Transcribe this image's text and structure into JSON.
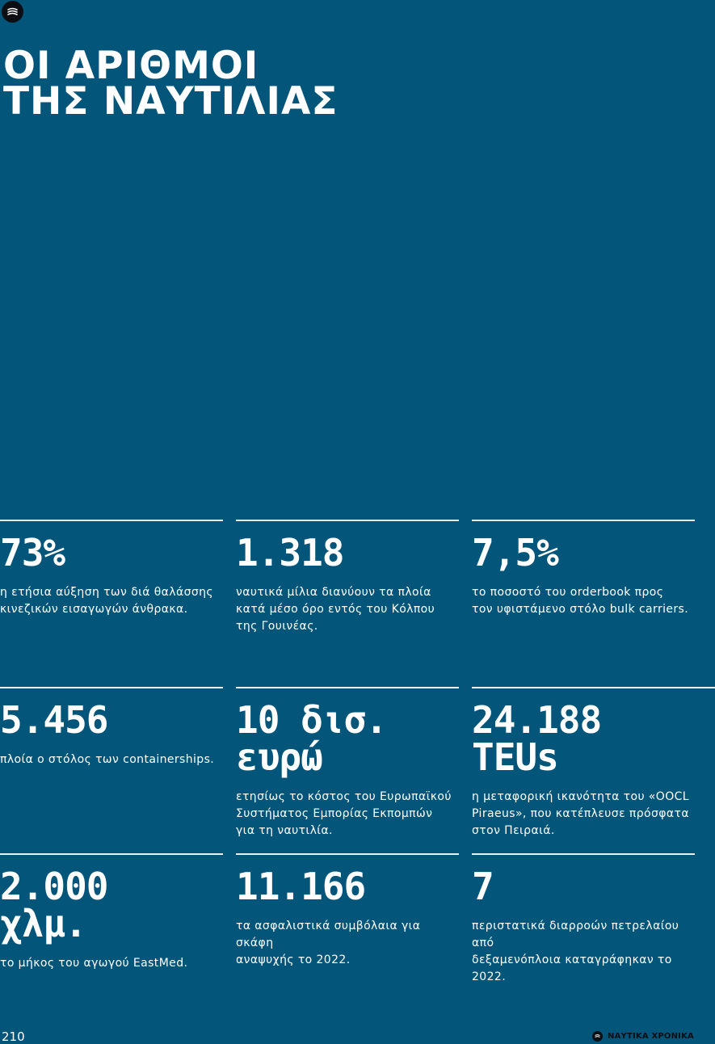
{
  "title": {
    "line1": "ΟΙ ΑΡΙΘΜΟΙ",
    "line2": "ΤΗΣ ΝΑΥΤΙΛΙΑΣ"
  },
  "stats": [
    {
      "value_lines": [
        "73%"
      ],
      "desc_lines": [
        "η ετήσια αύξηση των διά θαλάσσης",
        "κινεζικών εισαγωγών άνθρακα."
      ]
    },
    {
      "value_lines": [
        "1.318"
      ],
      "desc_lines": [
        "ναυτικά μίλια διανύουν τα πλοία",
        "κατά μέσο όρο εντός του Κόλπου",
        "της Γουινέας."
      ]
    },
    {
      "value_lines": [
        "7,5%"
      ],
      "desc_lines": [
        "το ποσοστό του orderbook προς",
        "τον υφιστάμενο στόλο bulk carriers."
      ]
    },
    {
      "value_lines": [
        "5.456"
      ],
      "desc_lines": [
        "πλοία ο στόλος των containerships."
      ]
    },
    {
      "value_lines": [
        "10 δισ.",
        "ευρώ"
      ],
      "desc_lines": [
        "ετησίως το κόστος του Ευρωπαϊκού",
        "Συστήματος Εμπορίας Εκπομπών",
        "για τη ναυτιλία."
      ]
    },
    {
      "value_lines": [
        "24.188",
        "TEUs"
      ],
      "desc_lines": [
        "η μεταφορική ικανότητα του «OOCL",
        "Piraeus», που κατέπλευσε πρόσφατα",
        "στον Πειραιά."
      ]
    },
    {
      "value_lines": [
        "2.000",
        "χλμ."
      ],
      "desc_lines": [
        "το μήκος του αγωγού EastMed."
      ]
    },
    {
      "value_lines": [
        "11.166"
      ],
      "desc_lines": [
        "τα ασφαλιστικά συμβόλαια για σκάφη",
        "αναψυχής το 2022."
      ]
    },
    {
      "value_lines": [
        "7"
      ],
      "desc_lines": [
        "περιστατικά διαρροών πετρελαίου από",
        "δεξαμενόπλοια καταγράφηκαν το 2022."
      ]
    }
  ],
  "footer": {
    "page_number": "210",
    "brand": "ΝΑΥΤΙΚΑ ΧΡΟΝΙΚΑ"
  },
  "icons": {
    "logo": "wave-logo-icon"
  },
  "colors": {
    "background": "#03557a",
    "text": "#ffffff",
    "rule": "#e9eef1",
    "logo": "#0b0f14"
  }
}
